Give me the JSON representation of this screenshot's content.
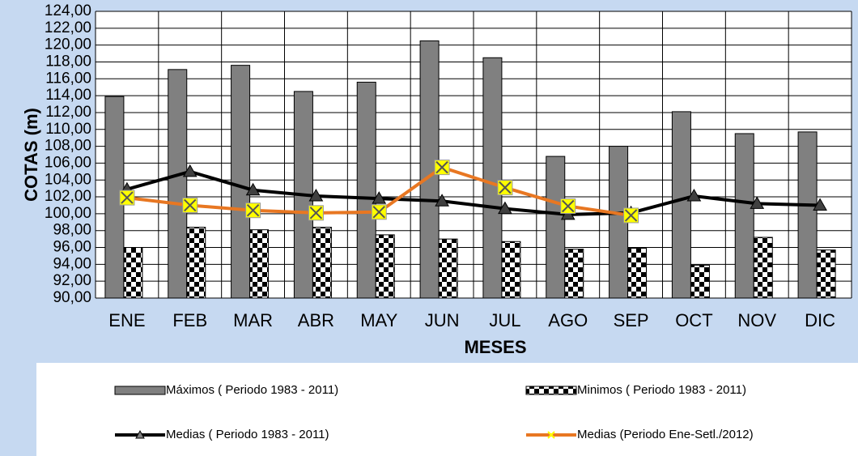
{
  "chart_data": {
    "type": "bar-line",
    "x_label": "MESES",
    "y_label": "COTAS (m)",
    "categories": [
      "ENE",
      "FEB",
      "MAR",
      "ABR",
      "MAY",
      "JUN",
      "JUL",
      "AGO",
      "SEP",
      "OCT",
      "NOV",
      "DIC"
    ],
    "series": [
      {
        "name": "Máximos ( Periodo 1983 - 2011)",
        "kind": "bar",
        "color": "#808080",
        "values": [
          113.9,
          117.1,
          117.6,
          114.5,
          115.6,
          120.5,
          118.5,
          106.8,
          108.0,
          112.1,
          109.5,
          109.7
        ]
      },
      {
        "name": "Minimos ( Periodo 1983 - 2011)",
        "kind": "bar",
        "color": "#000000",
        "pattern": "checker",
        "values": [
          96.0,
          98.4,
          98.1,
          98.4,
          97.5,
          97.0,
          96.7,
          95.8,
          95.9,
          93.9,
          97.2,
          95.7
        ]
      },
      {
        "name": "Medias ( Periodo 1983 - 2011)",
        "kind": "line",
        "color": "#000000",
        "marker": "triangle",
        "values": [
          102.9,
          105.0,
          102.8,
          102.1,
          101.8,
          101.5,
          100.6,
          99.9,
          100.1,
          102.1,
          101.2,
          101.0
        ]
      },
      {
        "name": "Medias (Periodo Ene-Setl./2012)",
        "kind": "line",
        "color": "#e87722",
        "marker": "x-square",
        "values": [
          101.9,
          101.0,
          100.4,
          100.1,
          100.2,
          105.5,
          103.1,
          100.9,
          99.8,
          null,
          null,
          null
        ]
      }
    ],
    "ylim": [
      90,
      124
    ],
    "yticks": [
      {
        "value": 90,
        "label": "90,00"
      },
      {
        "value": 92,
        "label": "92,00"
      },
      {
        "value": 94,
        "label": "94,00"
      },
      {
        "value": 96,
        "label": "96,00"
      },
      {
        "value": 98,
        "label": "98,00"
      },
      {
        "value": 100,
        "label": "100,00"
      },
      {
        "value": 102,
        "label": "102,00"
      },
      {
        "value": 104,
        "label": "104,00"
      },
      {
        "value": 106,
        "label": "106,00"
      },
      {
        "value": 108,
        "label": "108,00"
      },
      {
        "value": 110,
        "label": "110,00"
      },
      {
        "value": 112,
        "label": "112,00"
      },
      {
        "value": 114,
        "label": "114,00"
      },
      {
        "value": 116,
        "label": "116,00"
      },
      {
        "value": 118,
        "label": "118,00"
      },
      {
        "value": 120,
        "label": "120,00"
      },
      {
        "value": 122,
        "label": "122,00"
      },
      {
        "value": 124,
        "label": "124,00"
      }
    ],
    "grid": true,
    "legend": "bottom"
  }
}
